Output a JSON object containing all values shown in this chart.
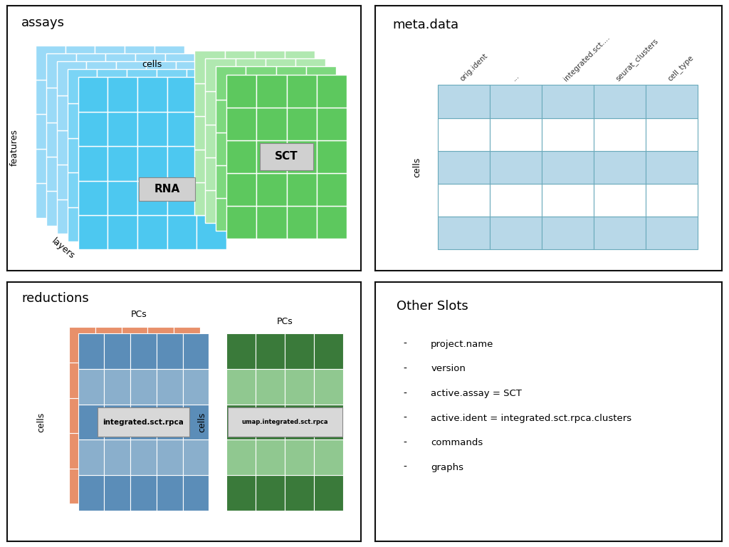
{
  "panel_titles": [
    "assays",
    "meta.data",
    "reductions",
    "Other Slots"
  ],
  "assays_rna_label": "RNA",
  "assays_sct_label": "SCT",
  "assays_cells_label": "cells",
  "assays_features_label": "features",
  "assays_layers_label": "layers",
  "rna_color_front": "#4DC8F0",
  "rna_color_mid": "#7AD4F5",
  "rna_color_back": "#9ADAF7",
  "sct_color_front": "#5DC85E",
  "sct_color_mid": "#7DD87E",
  "sct_color_back": "#9ADE9A",
  "sct_color_light": "#B0E8B0",
  "meta_col_headers": [
    "orig.ident",
    "...",
    "integrated.sct....",
    "seurat_clusters",
    "cell_type"
  ],
  "meta_color_blue": "#B8D8E8",
  "meta_color_white": "#FFFFFF",
  "meta_border_color": "#6AAABB",
  "meta_cells_label": "cells",
  "reductions_label1": "integrated.sct.rpca",
  "reductions_label2": "umap.integrated.sct.rpca",
  "reductions_pcs_label": "PCs",
  "reductions_cells_label": "cells",
  "rpca_color_blue_front": "#5B8DB8",
  "rpca_color_blue_light": "#8AAFCC",
  "rpca_color_orange": "#E8906A",
  "umap_color_dark": "#3A7A3A",
  "umap_color_light": "#90C890",
  "other_slots_items": [
    "project.name",
    "version",
    "active.assay = SCT",
    "active.ident = integrated.sct.rpca.clusters",
    "commands",
    "graphs"
  ],
  "bg_color": "#FFFFFF",
  "border_color": "#111111"
}
